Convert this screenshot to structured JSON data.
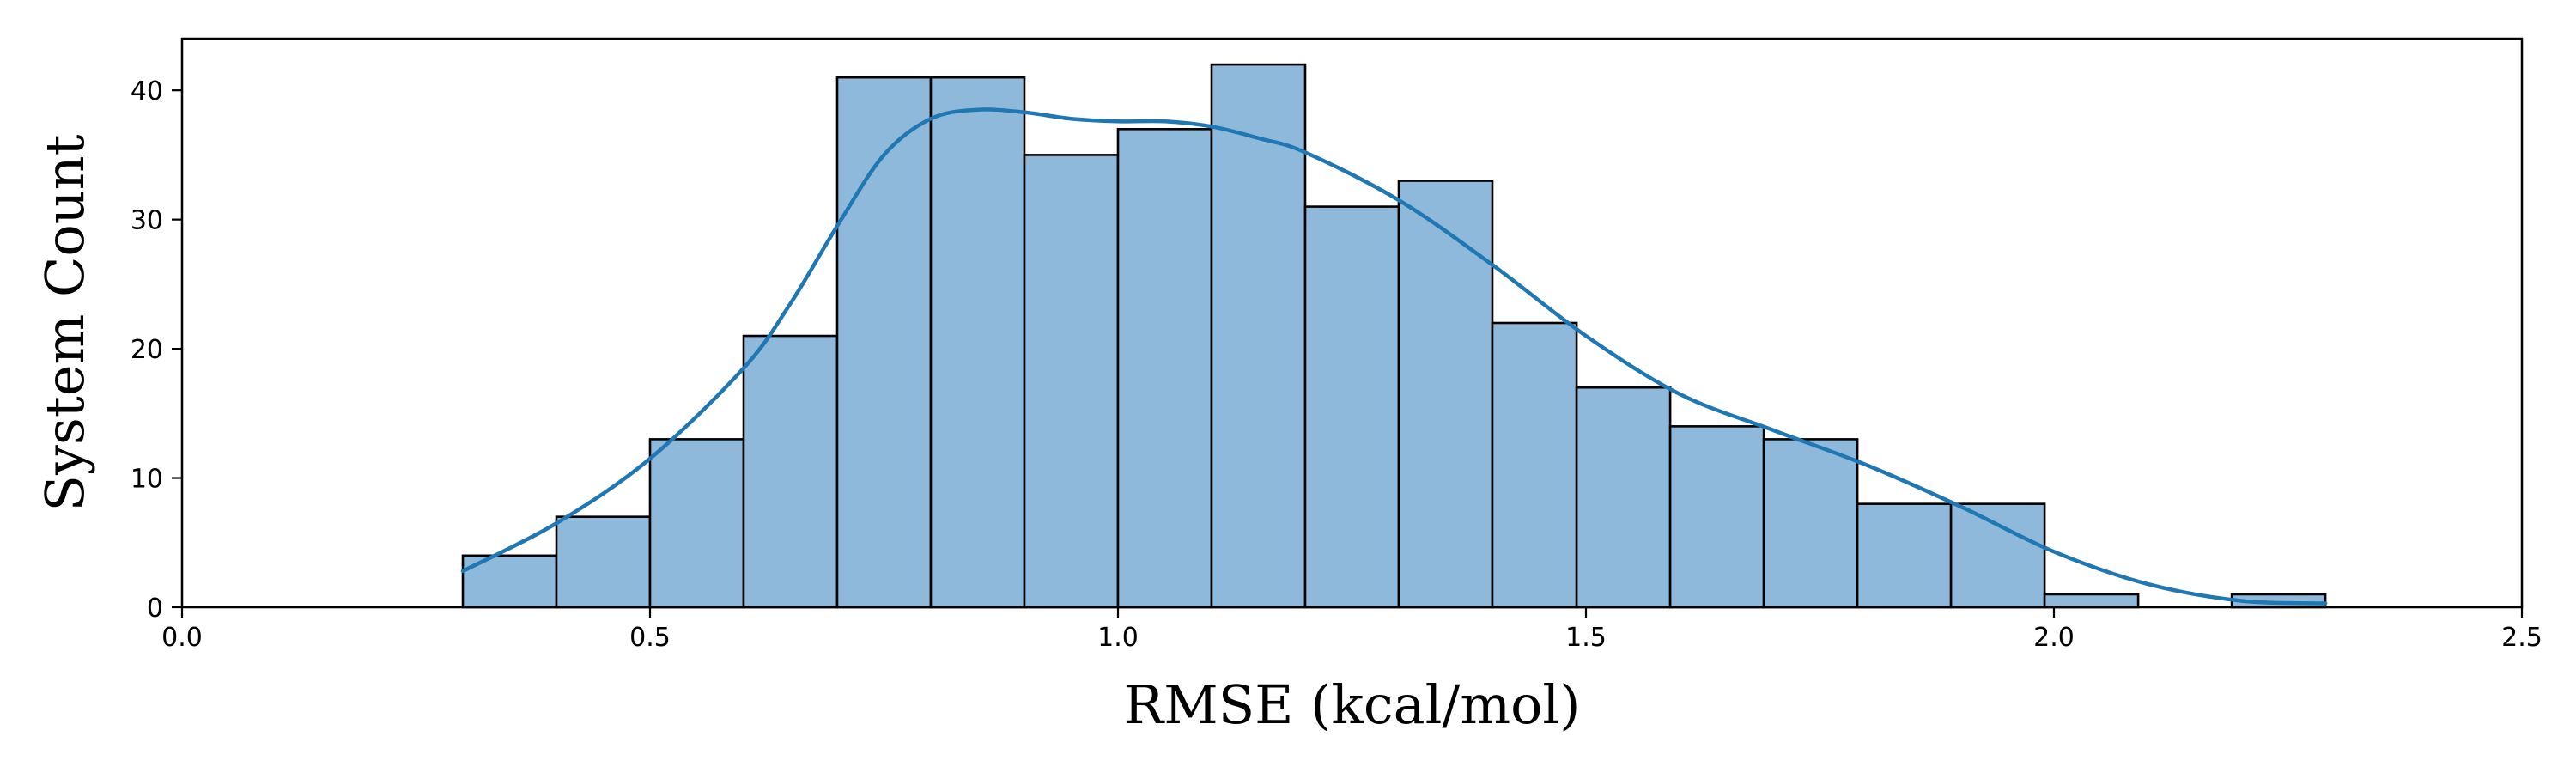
{
  "chart_data": {
    "type": "bar",
    "title": "",
    "xlabel": "RMSE (kcal/mol)",
    "ylabel": "System Count",
    "xlim": [
      0,
      2.5
    ],
    "ylim": [
      0,
      44
    ],
    "grid": false,
    "legend": "none",
    "x_ticks": [
      {
        "value": 0.0,
        "label": "0.0"
      },
      {
        "value": 0.5,
        "label": "0.5"
      },
      {
        "value": 1.0,
        "label": "1.0"
      },
      {
        "value": 1.5,
        "label": "1.5"
      },
      {
        "value": 2.0,
        "label": "2.0"
      },
      {
        "value": 2.5,
        "label": "2.5"
      }
    ],
    "y_ticks": [
      {
        "value": 0,
        "label": "0"
      },
      {
        "value": 10,
        "label": "10"
      },
      {
        "value": 20,
        "label": "20"
      },
      {
        "value": 30,
        "label": "30"
      },
      {
        "value": 40,
        "label": "40"
      }
    ],
    "bins": [
      {
        "x0": 0.3,
        "x1": 0.4,
        "count": 4
      },
      {
        "x0": 0.4,
        "x1": 0.5,
        "count": 7
      },
      {
        "x0": 0.5,
        "x1": 0.6,
        "count": 13
      },
      {
        "x0": 0.6,
        "x1": 0.7,
        "count": 21
      },
      {
        "x0": 0.7,
        "x1": 0.8,
        "count": 41
      },
      {
        "x0": 0.8,
        "x1": 0.9,
        "count": 41
      },
      {
        "x0": 0.9,
        "x1": 1.0,
        "count": 35
      },
      {
        "x0": 1.0,
        "x1": 1.1,
        "count": 37
      },
      {
        "x0": 1.1,
        "x1": 1.2,
        "count": 42
      },
      {
        "x0": 1.2,
        "x1": 1.3,
        "count": 31
      },
      {
        "x0": 1.3,
        "x1": 1.4,
        "count": 33
      },
      {
        "x0": 1.4,
        "x1": 1.49,
        "count": 22
      },
      {
        "x0": 1.49,
        "x1": 1.59,
        "count": 17
      },
      {
        "x0": 1.59,
        "x1": 1.69,
        "count": 14
      },
      {
        "x0": 1.69,
        "x1": 1.79,
        "count": 13
      },
      {
        "x0": 1.79,
        "x1": 1.89,
        "count": 8
      },
      {
        "x0": 1.89,
        "x1": 1.99,
        "count": 8
      },
      {
        "x0": 1.99,
        "x1": 2.09,
        "count": 1
      },
      {
        "x0": 2.09,
        "x1": 2.19,
        "count": 0
      },
      {
        "x0": 2.19,
        "x1": 2.29,
        "count": 1
      }
    ],
    "kde": {
      "x": [
        0.3,
        0.4,
        0.5,
        0.6,
        0.65,
        0.7,
        0.75,
        0.8,
        0.85,
        0.9,
        0.95,
        1.0,
        1.05,
        1.1,
        1.15,
        1.2,
        1.3,
        1.4,
        1.5,
        1.6,
        1.7,
        1.8,
        1.9,
        2.0,
        2.1,
        2.2,
        2.29
      ],
      "y": [
        2.8,
        6.5,
        11.5,
        18.5,
        23.5,
        29.5,
        35.0,
        37.8,
        38.5,
        38.3,
        37.8,
        37.6,
        37.6,
        37.2,
        36.3,
        35.2,
        31.5,
        26.5,
        21.0,
        16.5,
        13.7,
        11.0,
        7.8,
        4.3,
        1.8,
        0.5,
        0.3
      ]
    },
    "colors": {
      "bar_fill": "#8fb9da",
      "bar_edge": "#000000",
      "kde_line": "#1f77b4",
      "axis": "#000000"
    }
  }
}
